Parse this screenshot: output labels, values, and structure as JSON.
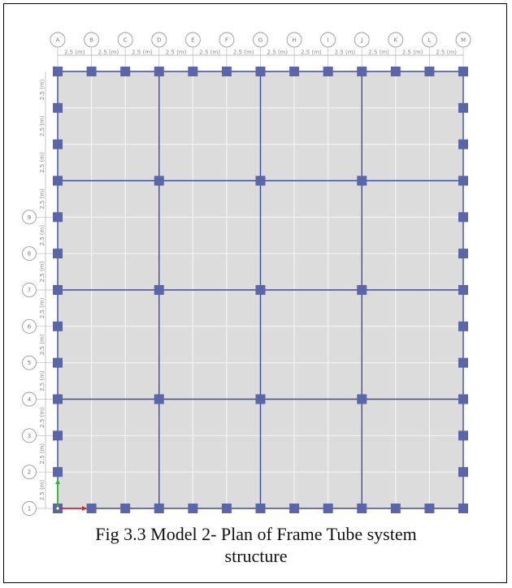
{
  "figure": {
    "caption_line1": "Fig 3.3 Model 2- Plan of Frame Tube system",
    "caption_line2": "structure"
  },
  "grid": {
    "x_labels": [
      "A",
      "B",
      "C",
      "D",
      "E",
      "F",
      "G",
      "H",
      "I",
      "J",
      "K",
      "L",
      "M"
    ],
    "y_labels_visible": [
      "9",
      "8",
      "7",
      "6",
      "5",
      "4",
      "3",
      "2",
      "1"
    ],
    "dimension_label": "2.5 (m)",
    "spacing_m": 2.5,
    "y_line_count": 13,
    "main_beam_x_indices": [
      0,
      3,
      6,
      9,
      12
    ],
    "main_beam_y_indices": [
      0,
      3,
      6,
      9,
      12
    ],
    "faint_x_indices": [
      1,
      2,
      4,
      5,
      7,
      8,
      10,
      11
    ],
    "faint_y_indices": [
      1,
      2,
      4,
      5,
      7,
      8,
      10,
      11
    ],
    "perimeter_columns": "every grid intersection on the outer boundary",
    "interior_columns": "every intersection of main beam lines"
  },
  "colors": {
    "slab": "#dcdcdc",
    "beam": "#3d4b9c",
    "column": "#5b66a8",
    "faint_grid": "#f4f4f4",
    "bubble": "#9a9a9a",
    "axis_x": "#e02020",
    "axis_y": "#20c020"
  },
  "icons": {
    "axis": "xy-axis-icon"
  }
}
